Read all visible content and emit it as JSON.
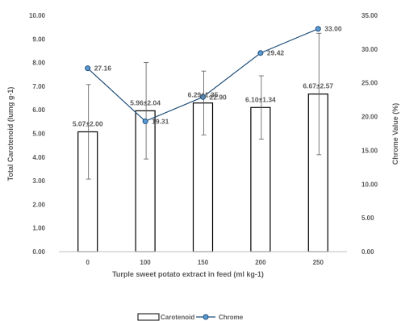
{
  "chart_data": {
    "type": "bar",
    "categories": [
      "0",
      "100",
      "150",
      "200",
      "250"
    ],
    "xlabel": "Turple sweet potato extract in feed (ml kg-1)",
    "ylabel": "Total Carotenoid (lumg g-1)",
    "y2label": "Chrome Value (%)",
    "ylim": [
      0,
      10
    ],
    "y2lim": [
      0,
      35
    ],
    "yticks": [
      "0.00",
      "1.00",
      "2.00",
      "3.00",
      "4.00",
      "5.00",
      "6.00",
      "7.00",
      "8.00",
      "9.00",
      "10.00"
    ],
    "y2ticks": [
      "0.00",
      "5.00",
      "10.00",
      "15.00",
      "20.00",
      "25.00",
      "30.00",
      "35.00"
    ],
    "grid": false,
    "legend_position": "bottom",
    "series": [
      {
        "name": "Carotenoid",
        "type": "bar",
        "axis": "left",
        "values": [
          5.07,
          5.96,
          6.29,
          6.1,
          6.67
        ],
        "errors": [
          2.0,
          2.04,
          1.35,
          1.34,
          2.57
        ],
        "labels": [
          "5.07±2.00",
          "5.96±2.04",
          "6.29±1.35",
          "6.10±1.34",
          "6.67±2.57"
        ],
        "color": "#000000",
        "fill": "#ffffff"
      },
      {
        "name": "Chrome",
        "type": "line",
        "axis": "right",
        "values": [
          27.16,
          19.31,
          22.9,
          29.42,
          33.0
        ],
        "labels": [
          "27.16",
          "19.31",
          "22.90",
          "29.42",
          "33.00"
        ],
        "color": "#1f4e79",
        "marker_fill": "#5b9bd5"
      }
    ]
  }
}
